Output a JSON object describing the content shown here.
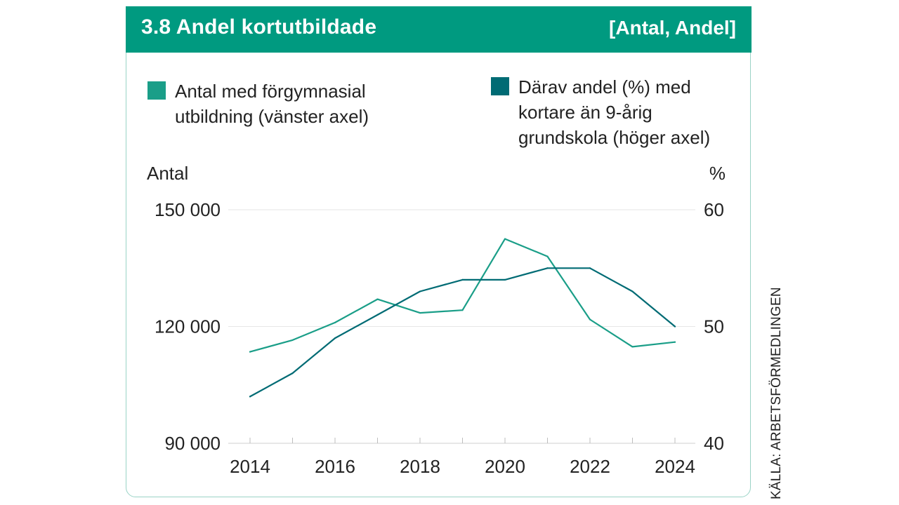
{
  "header": {
    "title": "3.8  Andel kortutbildade",
    "unit": "[Antal, Andel]",
    "color": "#009a80"
  },
  "legend": [
    {
      "label_line1": "Antal med förgymnasial",
      "label_line2": "utbildning (vänster axel)",
      "label_line3": "",
      "color": "#1a9e88"
    },
    {
      "label_line1": "Därav andel (%) med",
      "label_line2": "kortare än 9-årig",
      "label_line3": "grundskola (höger axel)",
      "color": "#006b74"
    }
  ],
  "source": "KÄLLA: ARBETSFÖRMEDLINGEN",
  "chart_data": {
    "type": "line",
    "x": [
      2014,
      2015,
      2016,
      2017,
      2018,
      2019,
      2020,
      2021,
      2022,
      2023,
      2024
    ],
    "x_tick_labels": [
      "2014",
      "2016",
      "2018",
      "2020",
      "2022",
      "2024"
    ],
    "left_axis": {
      "label": "Antal",
      "ylim": [
        90000,
        150000
      ],
      "ticks": [
        "150 000",
        "120 000",
        "90 000"
      ]
    },
    "right_axis": {
      "label": "%",
      "ylim": [
        40,
        60
      ],
      "ticks": [
        "60",
        "50",
        "40"
      ]
    },
    "series": [
      {
        "name": "Antal med förgymnasial utbildning (vänster axel)",
        "axis": "left",
        "color": "#1a9e88",
        "values": [
          113500,
          116500,
          121000,
          127000,
          123500,
          124200,
          142500,
          138000,
          121800,
          114800,
          116000
        ]
      },
      {
        "name": "Därav andel (%) med kortare än 9-årig grundskola (höger axel)",
        "axis": "right",
        "color": "#006b74",
        "values": [
          44.0,
          46.0,
          49.0,
          51.0,
          53.0,
          54.0,
          54.0,
          55.0,
          55.0,
          53.0,
          50.0
        ]
      }
    ],
    "grid": true
  }
}
